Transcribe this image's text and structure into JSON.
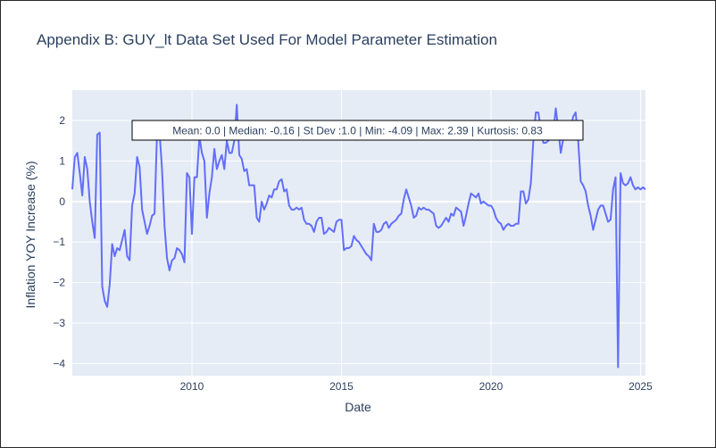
{
  "chart_data": {
    "type": "line",
    "title": "Appendix B: GUY_lt Data Set Used For Model Parameter Estimation",
    "xlabel": "Date",
    "ylabel": "Inflation YOY Increase (%)",
    "xlim": [
      "2006-01-01",
      "2025-03-01"
    ],
    "ylim": [
      -4.3,
      2.75
    ],
    "x_ticks": [
      2010,
      2015,
      2020,
      2025
    ],
    "y_ticks": [
      -4,
      -3,
      -2,
      -1,
      0,
      1,
      2
    ],
    "grid": true,
    "legend": "none",
    "line_color": "#636efa",
    "annotation": "Mean: 0.0 | Median: -0.16 | St Dev :1.0 | Min: -4.09 | Max: 2.39 | Kurtosis: 0.83",
    "series": [
      {
        "x": [
          "2006-01",
          "2006-02",
          "2006-03",
          "2006-04",
          "2006-05",
          "2006-06",
          "2006-07",
          "2006-08",
          "2006-09",
          "2006-10",
          "2006-11",
          "2006-12",
          "2007-01",
          "2007-02",
          "2007-03",
          "2007-04",
          "2007-05",
          "2007-06",
          "2007-07",
          "2007-08",
          "2007-09",
          "2007-10",
          "2007-11",
          "2007-12",
          "2008-01",
          "2008-02",
          "2008-03",
          "2008-04",
          "2008-05",
          "2008-06",
          "2008-07",
          "2008-08",
          "2008-09",
          "2008-10",
          "2008-11",
          "2008-12",
          "2009-01",
          "2009-02",
          "2009-03",
          "2009-04",
          "2009-05",
          "2009-06",
          "2009-07",
          "2009-08",
          "2009-09",
          "2009-10",
          "2009-11",
          "2009-12",
          "2010-01",
          "2010-02",
          "2010-03",
          "2010-04",
          "2010-05",
          "2010-06",
          "2010-07",
          "2010-08",
          "2010-09",
          "2010-10",
          "2010-11",
          "2010-12",
          "2011-01",
          "2011-02",
          "2011-03",
          "2011-04",
          "2011-05",
          "2011-06",
          "2011-07",
          "2011-08",
          "2011-09",
          "2011-10",
          "2011-11",
          "2011-12",
          "2012-01",
          "2012-02",
          "2012-03",
          "2012-04",
          "2012-05",
          "2012-06",
          "2012-07",
          "2012-08",
          "2012-09",
          "2012-10",
          "2012-11",
          "2012-12",
          "2013-01",
          "2013-02",
          "2013-03",
          "2013-04",
          "2013-05",
          "2013-06",
          "2013-07",
          "2013-08",
          "2013-09",
          "2013-10",
          "2013-11",
          "2013-12",
          "2014-01",
          "2014-02",
          "2014-03",
          "2014-04",
          "2014-05",
          "2014-06",
          "2014-07",
          "2014-08",
          "2014-09",
          "2014-10",
          "2014-11",
          "2014-12",
          "2015-01",
          "2015-02",
          "2015-03",
          "2015-04",
          "2015-05",
          "2015-06",
          "2015-07",
          "2015-08",
          "2015-09",
          "2015-10",
          "2015-11",
          "2015-12",
          "2016-01",
          "2016-02",
          "2016-03",
          "2016-04",
          "2016-05",
          "2016-06",
          "2016-07",
          "2016-08",
          "2016-09",
          "2016-10",
          "2016-11",
          "2016-12",
          "2017-01",
          "2017-02",
          "2017-03",
          "2017-04",
          "2017-05",
          "2017-06",
          "2017-07",
          "2017-08",
          "2017-09",
          "2017-10",
          "2017-11",
          "2017-12",
          "2018-01",
          "2018-02",
          "2018-03",
          "2018-04",
          "2018-05",
          "2018-06",
          "2018-07",
          "2018-08",
          "2018-09",
          "2018-10",
          "2018-11",
          "2018-12",
          "2019-01",
          "2019-02",
          "2019-03",
          "2019-04",
          "2019-05",
          "2019-06",
          "2019-07",
          "2019-08",
          "2019-09",
          "2019-10",
          "2019-11",
          "2019-12",
          "2020-01",
          "2020-02",
          "2020-03",
          "2020-04",
          "2020-05",
          "2020-06",
          "2020-07",
          "2020-08",
          "2020-09",
          "2020-10",
          "2020-11",
          "2020-12",
          "2021-01",
          "2021-02",
          "2021-03",
          "2021-04",
          "2021-05",
          "2021-06",
          "2021-07",
          "2021-08",
          "2021-09",
          "2021-10",
          "2021-11",
          "2021-12",
          "2022-01",
          "2022-02",
          "2022-03",
          "2022-04",
          "2022-05",
          "2022-06",
          "2022-07",
          "2022-08",
          "2022-09",
          "2022-10",
          "2022-11",
          "2022-12",
          "2023-01",
          "2023-02",
          "2023-03",
          "2023-04",
          "2023-05",
          "2023-06",
          "2023-07",
          "2023-08",
          "2023-09",
          "2023-10",
          "2023-11",
          "2023-12",
          "2024-01",
          "2024-02",
          "2024-03",
          "2024-04",
          "2024-05",
          "2024-06",
          "2024-07",
          "2024-08",
          "2024-09",
          "2024-10",
          "2024-11",
          "2024-12",
          "2025-01",
          "2025-02",
          "2025-03"
        ],
        "y": [
          0.3,
          1.1,
          1.2,
          0.7,
          0.15,
          1.1,
          0.8,
          0.0,
          -0.5,
          -0.9,
          1.65,
          1.7,
          -2.1,
          -2.45,
          -2.6,
          -2.05,
          -1.05,
          -1.35,
          -1.15,
          -1.2,
          -0.95,
          -0.7,
          -1.35,
          -1.45,
          -0.1,
          0.2,
          1.1,
          0.85,
          -0.2,
          -0.5,
          -0.8,
          -0.6,
          -0.35,
          -0.3,
          1.7,
          1.7,
          0.8,
          -0.6,
          -1.4,
          -1.7,
          -1.45,
          -1.4,
          -1.15,
          -1.2,
          -1.3,
          -1.5,
          0.7,
          0.6,
          -0.8,
          0.6,
          0.6,
          1.6,
          1.2,
          1.0,
          -0.4,
          0.2,
          0.6,
          1.3,
          0.8,
          1.0,
          1.15,
          0.8,
          1.5,
          1.2,
          1.2,
          1.5,
          2.39,
          1.15,
          1.05,
          0.75,
          0.8,
          0.4,
          0.4,
          0.4,
          -0.4,
          -0.5,
          0.0,
          -0.2,
          -0.05,
          0.15,
          0.1,
          0.3,
          0.3,
          0.5,
          0.55,
          0.25,
          0.3,
          -0.1,
          -0.2,
          -0.2,
          -0.15,
          -0.2,
          -0.15,
          -0.45,
          -0.55,
          -0.55,
          -0.6,
          -0.75,
          -0.5,
          -0.4,
          -0.4,
          -0.8,
          -0.75,
          -0.65,
          -0.7,
          -0.75,
          -0.5,
          -0.45,
          -0.45,
          -1.2,
          -1.15,
          -1.15,
          -1.1,
          -0.85,
          -0.95,
          -1.0,
          -1.1,
          -1.2,
          -1.3,
          -1.35,
          -1.45,
          -0.55,
          -0.75,
          -0.75,
          -0.7,
          -0.55,
          -0.5,
          -0.65,
          -0.55,
          -0.5,
          -0.45,
          -0.35,
          -0.3,
          0.05,
          0.3,
          0.1,
          -0.1,
          -0.4,
          -0.35,
          -0.15,
          -0.2,
          -0.15,
          -0.2,
          -0.2,
          -0.25,
          -0.3,
          -0.6,
          -0.65,
          -0.6,
          -0.5,
          -0.4,
          -0.5,
          -0.3,
          -0.35,
          -0.15,
          -0.2,
          -0.25,
          -0.6,
          -0.35,
          -0.05,
          0.2,
          0.15,
          0.1,
          0.2,
          -0.05,
          0.0,
          -0.05,
          -0.1,
          -0.1,
          -0.2,
          -0.4,
          -0.5,
          -0.55,
          -0.7,
          -0.6,
          -0.55,
          -0.6,
          -0.6,
          -0.55,
          -0.55,
          0.25,
          0.25,
          -0.05,
          0.05,
          0.45,
          1.5,
          2.2,
          2.2,
          1.8,
          1.45,
          1.45,
          1.5,
          1.6,
          1.7,
          2.3,
          1.8,
          1.2,
          1.55,
          1.75,
          1.75,
          1.8,
          2.1,
          2.2,
          1.5,
          0.5,
          0.4,
          0.25,
          -0.1,
          -0.35,
          -0.7,
          -0.45,
          -0.2,
          -0.1,
          -0.1,
          -0.3,
          -0.5,
          -0.45,
          0.3,
          0.6,
          -4.09,
          0.7,
          0.45,
          0.4,
          0.45,
          0.6,
          0.4,
          0.3,
          0.35,
          0.3,
          0.35,
          0.3
        ]
      }
    ]
  }
}
